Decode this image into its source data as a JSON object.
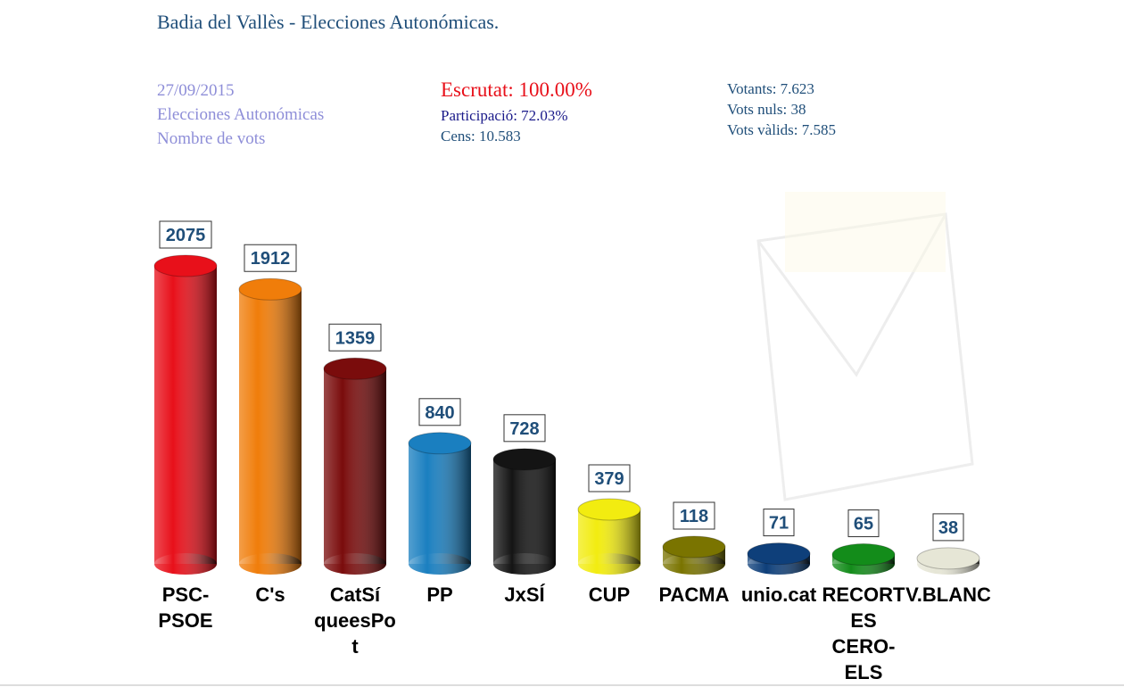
{
  "chart_data": {
    "type": "bar",
    "title": "Badia del Vallès - Elecciones Autonómicas.",
    "info_left": [
      "27/09/2015",
      "Elecciones Autonómicas",
      "Nombre de vots"
    ],
    "scrutiny": "Escrutat: 100.00%",
    "info_middle": [
      "Participació: 72.03%",
      "Cens: 10.583"
    ],
    "info_right": [
      "Votants: 7.623",
      "Vots nuls: 38",
      "Vots vàlids: 7.585"
    ],
    "categories": [
      "PSC-PSOE",
      "C's",
      "CatSí queesPot",
      "PP",
      "JxSÍ",
      "CUP",
      "PACMA",
      "unio.cat",
      "RECORTES CERO-ELS",
      "V.BLANC"
    ],
    "values": [
      2075,
      1912,
      1359,
      840,
      728,
      379,
      118,
      71,
      65,
      38
    ],
    "colors": [
      "#e8101a",
      "#f07d0a",
      "#7a0c0c",
      "#1a7fc0",
      "#141414",
      "#f2ec10",
      "#7a7400",
      "#0e3f7a",
      "#138c1a",
      "#e6e6d6"
    ]
  }
}
